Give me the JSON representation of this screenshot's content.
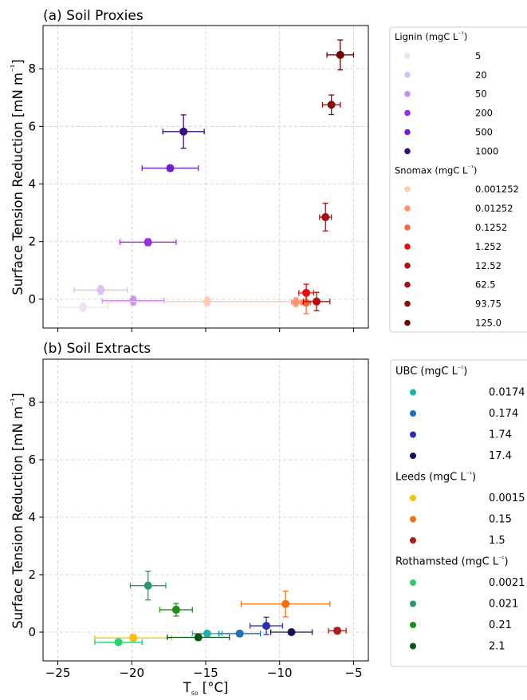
{
  "chart_data": [
    {
      "type": "scatter",
      "title": "(a) Soil Proxies",
      "xlabel": "",
      "ylabel": "Surface Tension Reduction [mN m⁻¹]",
      "xlim": [
        -26,
        -4
      ],
      "ylim": [
        -1,
        9.5
      ],
      "xticks": [
        -25,
        -20,
        -15,
        -10,
        -5
      ],
      "yticks": [
        0,
        2,
        4,
        6,
        8
      ],
      "grid": true,
      "legend_placement": "right",
      "legend_groups": [
        {
          "title": "Lignin (mgC L⁻¹)",
          "series": [
            {
              "name": "5",
              "color": "#ede0f7",
              "points": [
                {
                  "x": -23.3,
                  "y": -0.28,
                  "xerr": 1.7,
                  "yerr": 0.15
                }
              ]
            },
            {
              "name": "20",
              "color": "#dcbdf4",
              "points": [
                {
                  "x": -22.1,
                  "y": 0.32,
                  "xerr": 1.8,
                  "yerr": 0.15
                }
              ]
            },
            {
              "name": "50",
              "color": "#c493ef",
              "points": [
                {
                  "x": -19.9,
                  "y": -0.05,
                  "xerr": 2.1,
                  "yerr": 0.15
                }
              ]
            },
            {
              "name": "200",
              "color": "#9b2ee0",
              "points": [
                {
                  "x": -18.9,
                  "y": 1.98,
                  "xerr": 1.9,
                  "yerr": 0.12
                }
              ]
            },
            {
              "name": "500",
              "color": "#6f22c4",
              "points": [
                {
                  "x": -17.4,
                  "y": 4.55,
                  "xerr": 1.9,
                  "yerr": 0.1
                }
              ]
            },
            {
              "name": "1000",
              "color": "#3a0e7a",
              "points": [
                {
                  "x": -16.5,
                  "y": 5.82,
                  "xerr": 1.4,
                  "yerr": 0.58
                }
              ]
            }
          ]
        },
        {
          "title": "Snomax (mgC L⁻¹)",
          "series": [
            {
              "name": "0.001252",
              "color": "#fccab7",
              "points": [
                {
                  "x": -14.9,
                  "y": -0.08,
                  "xerr": 6.7,
                  "yerr": 0.15
                }
              ]
            },
            {
              "name": "0.01252",
              "color": "#fb9272",
              "points": [
                {
                  "x": -8.9,
                  "y": -0.1,
                  "xerr": 0.3,
                  "yerr": 0.15
                }
              ]
            },
            {
              "name": "0.1252",
              "color": "#f8683f",
              "points": [
                {
                  "x": -8.2,
                  "y": -0.12,
                  "xerr": 0.3,
                  "yerr": 0.38
                }
              ]
            },
            {
              "name": "1.252",
              "color": "#e80c0c",
              "points": [
                {
                  "x": -8.2,
                  "y": 0.22,
                  "xerr": 0.5,
                  "yerr": 0.3
                }
              ]
            },
            {
              "name": "12.52",
              "color": "#b80c0c",
              "points": [
                {
                  "x": -7.5,
                  "y": -0.08,
                  "xerr": 0.9,
                  "yerr": 0.32
                }
              ]
            },
            {
              "name": "62.5",
              "color": "#a11212",
              "points": [
                {
                  "x": -6.9,
                  "y": 2.85,
                  "xerr": 0.4,
                  "yerr": 0.48
                }
              ]
            },
            {
              "name": "93.75",
              "color": "#8b0b0b",
              "points": [
                {
                  "x": -6.5,
                  "y": 6.75,
                  "xerr": 0.6,
                  "yerr": 0.34
                }
              ]
            },
            {
              "name": "125.0",
              "color": "#6b0404",
              "points": [
                {
                  "x": -5.9,
                  "y": 8.48,
                  "xerr": 0.9,
                  "yerr": 0.52
                }
              ]
            }
          ]
        }
      ]
    },
    {
      "type": "scatter",
      "title": "(b) Soil Extracts",
      "xlabel": "T₅₀ [°C]",
      "ylabel": "Surface Tension Reduction [mN m⁻¹]",
      "xlim": [
        -26,
        -4
      ],
      "ylim": [
        -1,
        9.5
      ],
      "xticks": [
        -25,
        -20,
        -15,
        -10,
        -5
      ],
      "yticks": [
        0,
        2,
        4,
        6,
        8
      ],
      "grid": true,
      "legend_placement": "right",
      "legend_groups": [
        {
          "title": "UBC (mgC L⁻¹)",
          "series": [
            {
              "name": "0.0174",
              "color": "#20b2aa",
              "points": [
                {
                  "x": -14.9,
                  "y": -0.05,
                  "xerr": 1.0,
                  "yerr": 0.08
                }
              ]
            },
            {
              "name": "0.174",
              "color": "#1f6fb2",
              "points": [
                {
                  "x": -12.7,
                  "y": -0.05,
                  "xerr": 1.4,
                  "yerr": 0.1
                }
              ]
            },
            {
              "name": "1.74",
              "color": "#2b2fb0",
              "points": [
                {
                  "x": -10.9,
                  "y": 0.22,
                  "xerr": 1.1,
                  "yerr": 0.3
                }
              ]
            },
            {
              "name": "17.4",
              "color": "#111552",
              "points": [
                {
                  "x": -9.2,
                  "y": 0.0,
                  "xerr": 1.4,
                  "yerr": 0.08
                }
              ]
            }
          ]
        },
        {
          "title": "Leeds (mgC L⁻¹)",
          "series": [
            {
              "name": "0.0015",
              "color": "#f5c010",
              "points": [
                {
                  "x": -19.9,
                  "y": -0.2,
                  "xerr": 2.6,
                  "yerr": 0.12
                }
              ]
            },
            {
              "name": "0.15",
              "color": "#f07010",
              "points": [
                {
                  "x": -9.6,
                  "y": 0.98,
                  "xerr": 3.0,
                  "yerr": 0.45
                }
              ]
            },
            {
              "name": "1.5",
              "color": "#a82018",
              "points": [
                {
                  "x": -6.1,
                  "y": 0.05,
                  "xerr": 0.6,
                  "yerr": 0.1
                }
              ]
            }
          ]
        },
        {
          "title": "Rothamsted (mgC L⁻¹)",
          "series": [
            {
              "name": "0.0021",
              "color": "#2ecc71",
              "points": [
                {
                  "x": -20.9,
                  "y": -0.35,
                  "xerr": 1.6,
                  "yerr": 0.08
                }
              ]
            },
            {
              "name": "0.021",
              "color": "#27996a",
              "points": [
                {
                  "x": -18.9,
                  "y": 1.62,
                  "xerr": 1.2,
                  "yerr": 0.5
                }
              ]
            },
            {
              "name": "0.21",
              "color": "#1e8f12",
              "points": [
                {
                  "x": -17.0,
                  "y": 0.78,
                  "xerr": 1.1,
                  "yerr": 0.22
                }
              ]
            },
            {
              "name": "2.1",
              "color": "#0d5414",
              "points": [
                {
                  "x": -15.5,
                  "y": -0.18,
                  "xerr": 2.1,
                  "yerr": 0.1
                }
              ]
            }
          ]
        }
      ]
    }
  ]
}
